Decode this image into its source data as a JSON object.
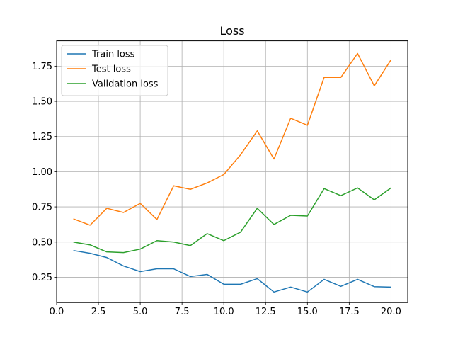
{
  "chart_data": {
    "type": "line",
    "title": "Loss",
    "xlabel": "",
    "ylabel": "",
    "xlim": [
      0.0,
      21.0
    ],
    "ylim": [
      0.07,
      1.93
    ],
    "xticks": [
      0.0,
      2.5,
      5.0,
      7.5,
      10.0,
      12.5,
      15.0,
      17.5,
      20.0
    ],
    "xtick_labels": [
      "0.0",
      "2.5",
      "5.0",
      "7.5",
      "10.0",
      "12.5",
      "15.0",
      "17.5",
      "20.0"
    ],
    "yticks": [
      0.25,
      0.5,
      0.75,
      1.0,
      1.25,
      1.5,
      1.75
    ],
    "ytick_labels": [
      "0.25",
      "0.50",
      "0.75",
      "1.00",
      "1.25",
      "1.50",
      "1.75"
    ],
    "grid": true,
    "legend_position": "top-left",
    "x": [
      1,
      2,
      3,
      4,
      5,
      6,
      7,
      8,
      9,
      10,
      11,
      12,
      13,
      14,
      15,
      16,
      17,
      18,
      19,
      20
    ],
    "series": [
      {
        "name": "Train loss",
        "color": "#1f77b4",
        "values": [
          0.44,
          0.42,
          0.39,
          0.33,
          0.29,
          0.31,
          0.31,
          0.255,
          0.27,
          0.2,
          0.2,
          0.24,
          0.145,
          0.18,
          0.145,
          0.235,
          0.185,
          0.235,
          0.183,
          0.18
        ]
      },
      {
        "name": "Test loss",
        "color": "#ff7f0e",
        "values": [
          0.665,
          0.62,
          0.74,
          0.71,
          0.775,
          0.66,
          0.9,
          0.875,
          0.92,
          0.98,
          1.12,
          1.29,
          1.09,
          1.38,
          1.33,
          1.67,
          1.67,
          1.84,
          1.61,
          1.795
        ]
      },
      {
        "name": "Validation loss",
        "color": "#2ca02c",
        "values": [
          0.5,
          0.48,
          0.43,
          0.425,
          0.45,
          0.51,
          0.5,
          0.475,
          0.56,
          0.51,
          0.57,
          0.74,
          0.625,
          0.69,
          0.685,
          0.88,
          0.83,
          0.885,
          0.8,
          0.885
        ]
      }
    ]
  }
}
